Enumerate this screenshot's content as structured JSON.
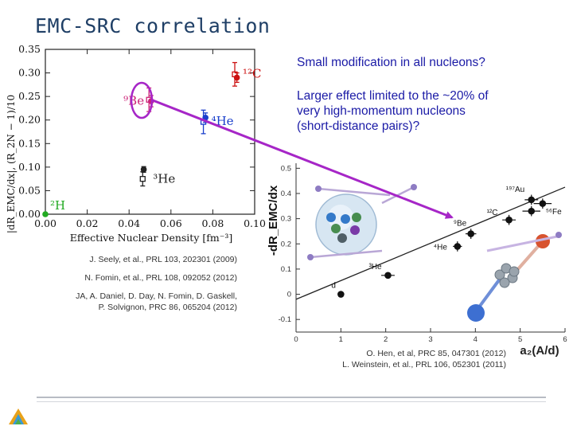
{
  "slide": {
    "title": "EMC-SRC correlation",
    "note1": "Small modification in all nucleons?",
    "note2_lines": [
      "Larger effect limited to the ~20% of",
      "very high-momentum nucleons",
      "(short-distance pairs)?"
    ],
    "cites_left": [
      "J. Seely, et al., PRL 103, 202301 (2009)",
      "N. Fomin, et al., PRL 108, 092052 (2012)",
      "JA, A. Daniel, D. Day, N. Fomin, D. Gaskell,",
      "P. Solvignon, PRC 86, 065204 (2012)"
    ],
    "cites_right": [
      "O. Hen, et al, PRC 85, 047301 (2012)",
      "L. Weinstein, et al., PRL 106, 052301 (2011)"
    ]
  },
  "chart_data": [
    {
      "type": "scatter",
      "title": "",
      "xlabel": "Effective Nuclear Density [fm⁻³]",
      "ylabel": "|dR_EMC/dx|, (R_2N − 1)/10",
      "xlim": [
        0.0,
        0.1
      ],
      "ylim": [
        0.0,
        0.35
      ],
      "xticks": [
        0.0,
        0.02,
        0.04,
        0.06,
        0.08,
        0.1
      ],
      "xtick_labels": [
        "0.00",
        "0.02",
        "0.04",
        "0.06",
        "0.08",
        "0.10"
      ],
      "yticks": [
        0.0,
        0.05,
        0.1,
        0.15,
        0.2,
        0.25,
        0.3,
        0.35
      ],
      "ytick_labels": [
        "0.00",
        "0.05",
        "0.10",
        "0.15",
        "0.20",
        "0.25",
        "0.30",
        "0.35"
      ],
      "points": [
        {
          "label": "²H",
          "series": "R_2N",
          "x": 0.0,
          "y": 0.0,
          "err": 0.003,
          "color": "#22aa22"
        },
        {
          "label": "³He",
          "series": "EMC",
          "x": 0.0465,
          "y": 0.075,
          "err": 0.015,
          "color": "#222222"
        },
        {
          "label": "³He",
          "series": "R_2N",
          "x": 0.047,
          "y": 0.095,
          "err": 0.006,
          "color": "#222222"
        },
        {
          "label": "⁴He",
          "series": "EMC",
          "x": 0.0755,
          "y": 0.196,
          "err": 0.025,
          "color": "#1a3fcc"
        },
        {
          "label": "⁴He",
          "series": "R_2N",
          "x": 0.0765,
          "y": 0.205,
          "err": 0.01,
          "color": "#1a3fcc"
        },
        {
          "label": "⁹Be",
          "series": "EMC",
          "x": 0.0495,
          "y": 0.243,
          "err": 0.025,
          "color": "#cc2277"
        },
        {
          "label": "⁹Be",
          "series": "R_2N",
          "x": 0.0505,
          "y": 0.24,
          "err": 0.012,
          "color": "#cc2277"
        },
        {
          "label": "¹²C",
          "series": "EMC",
          "x": 0.0905,
          "y": 0.297,
          "err": 0.025,
          "color": "#cc1111"
        },
        {
          "label": "¹²C",
          "series": "R_2N",
          "x": 0.0915,
          "y": 0.29,
          "err": 0.01,
          "color": "#cc1111"
        }
      ]
    },
    {
      "type": "scatter",
      "title": "",
      "xlabel": "a₂(A/d)",
      "ylabel": "-dR_EMC/dx",
      "xlim": [
        0,
        6
      ],
      "ylim": [
        -0.15,
        0.52
      ],
      "xticks": [
        0,
        1,
        2,
        3,
        4,
        5,
        6
      ],
      "yticks": [
        -0.1,
        0.0,
        0.1,
        0.2,
        0.3,
        0.4,
        0.5
      ],
      "ytick_labels": [
        "-0.1",
        "0",
        "0.1",
        "0.2",
        "0.3",
        "0.4",
        "0.5"
      ],
      "fit_line": {
        "x": [
          0.0,
          6.0
        ],
        "y": [
          -0.02,
          0.425
        ]
      },
      "points": [
        {
          "label": "d",
          "x": 1.0,
          "y": 0.0,
          "xerr": 0.04,
          "yerr": 0.0
        },
        {
          "label": "³He",
          "x": 2.05,
          "y": 0.075,
          "xerr": 0.15,
          "yerr": 0.01
        },
        {
          "label": "⁴He",
          "x": 3.6,
          "y": 0.19,
          "xerr": 0.1,
          "yerr": 0.02
        },
        {
          "label": "⁹Be",
          "x": 3.9,
          "y": 0.24,
          "xerr": 0.12,
          "yerr": 0.02
        },
        {
          "label": "¹²C",
          "x": 4.75,
          "y": 0.295,
          "xerr": 0.15,
          "yerr": 0.02
        },
        {
          "label": "⁵⁶Fe",
          "x": 5.25,
          "y": 0.33,
          "xerr": 0.2,
          "yerr": 0.02
        },
        {
          "label": "¹⁹⁷Au",
          "x": 5.25,
          "y": 0.375,
          "xerr": 0.15,
          "yerr": 0.02
        },
        {
          "label": "",
          "x": 5.5,
          "y": 0.36,
          "xerr": 0.2,
          "yerr": 0.02
        }
      ]
    }
  ],
  "colors": {
    "title": "#1f3f66",
    "note": "#1a1aa6",
    "arrow": "#a626c7",
    "highlight": "#a626c7"
  }
}
